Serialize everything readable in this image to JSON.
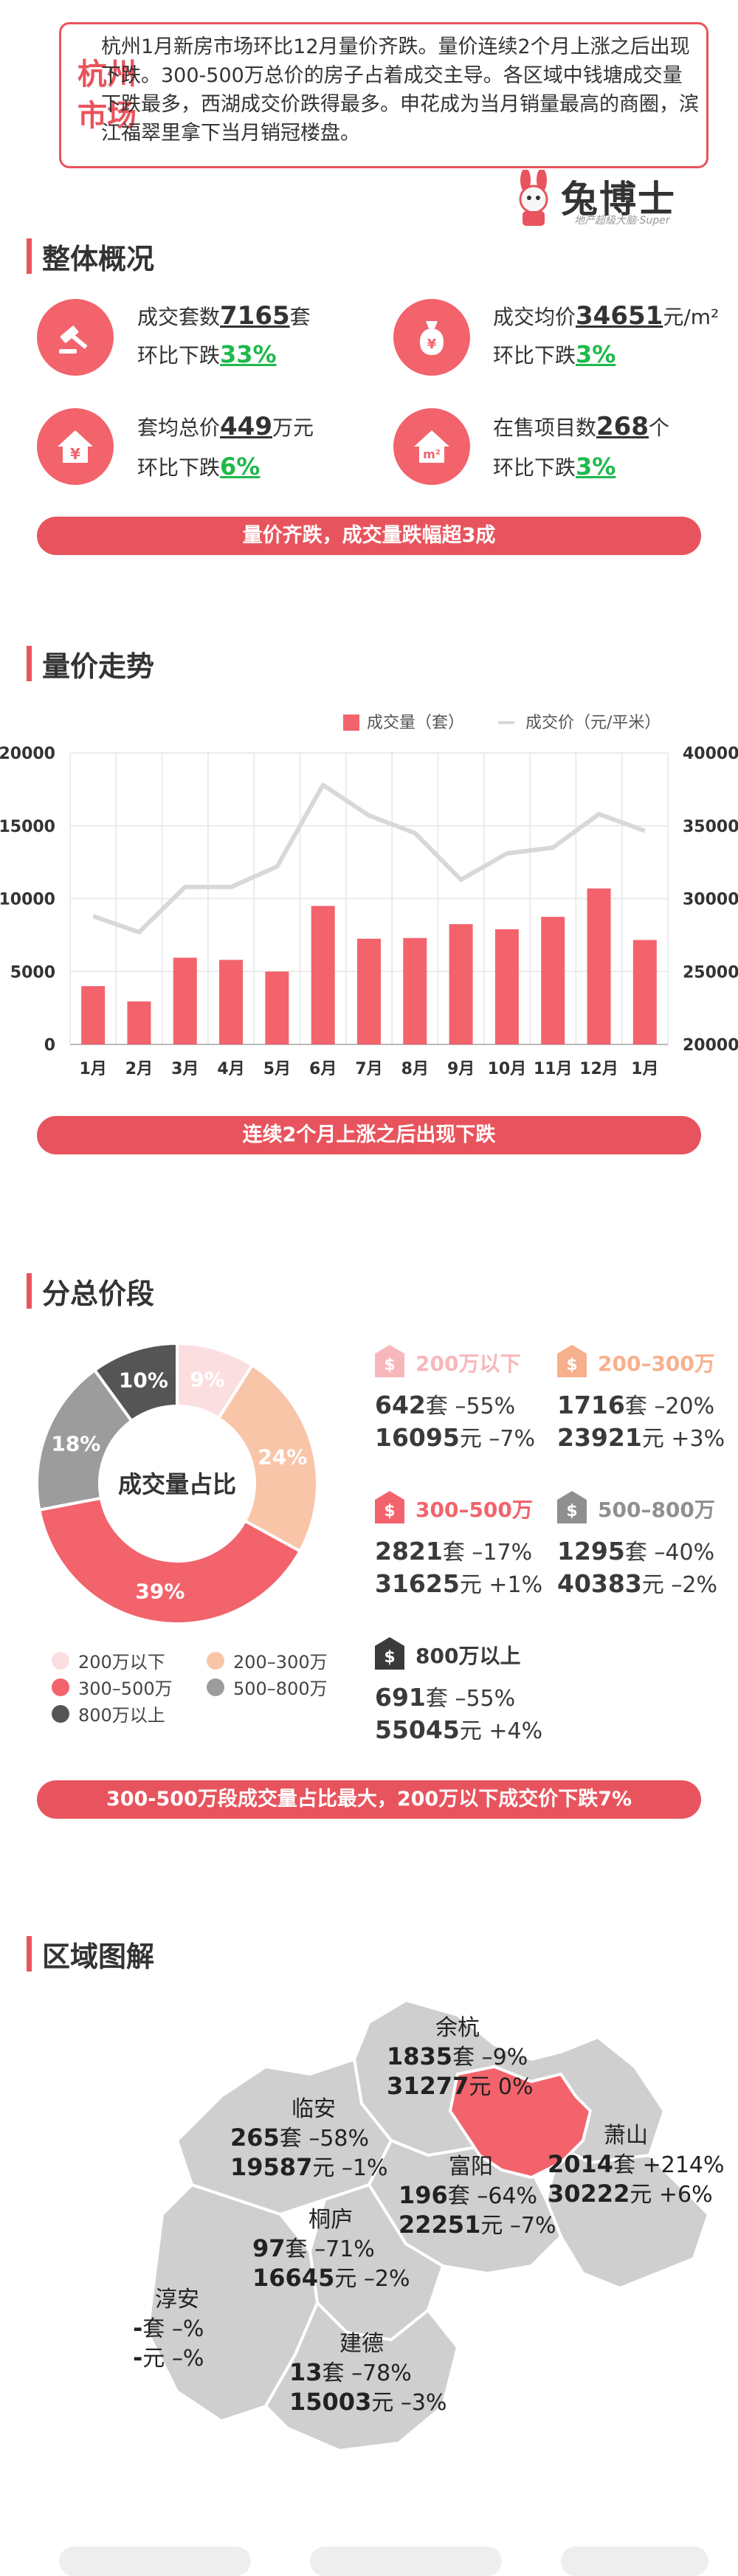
{
  "header": {
    "city": "杭州市场",
    "intro": "杭州1月新房市场环比12月量价齐跌。量价连续2个月上涨之后出现下跌。300-500万总价的房子占着成交主导。各区域中钱塘成交量下跌最多，西湖成交价跌得最多。申花成为当月销量最高的商圈，滨江福翠里拿下当月销冠楼盘。",
    "logo_text": "兔博士",
    "logo_sub": "地产超级大脑·Super"
  },
  "overview": {
    "title": "整体概况",
    "stats": [
      {
        "label": "成交套数",
        "value": "7165",
        "unit": "套",
        "change_label": "环比下跌",
        "change": "33%",
        "icon": "gavel-icon"
      },
      {
        "label": "成交均价",
        "value": "34651",
        "unit": "元/m²",
        "change_label": "环比下跌",
        "change": "3%",
        "icon": "money-bag-icon"
      },
      {
        "label": "套均总价",
        "value": "449",
        "unit": "万元",
        "change_label": "环比下跌",
        "change": "6%",
        "icon": "house-yen-icon"
      },
      {
        "label": "在售项目数",
        "value": "268",
        "unit": "个",
        "change_label": "环比下跌",
        "change": "3%",
        "icon": "house-m2-icon"
      }
    ],
    "banner": "量价齐跌，成交量跌幅超3成"
  },
  "trend": {
    "title": "量价走势",
    "banner": "连续2个月上涨之后出现下跌"
  },
  "chart_data": {
    "type": "bar",
    "categories": [
      "1月",
      "2月",
      "3月",
      "4月",
      "5月",
      "6月",
      "7月",
      "8月",
      "9月",
      "10月",
      "11月",
      "12月",
      "1月"
    ],
    "series": [
      {
        "name": "成交量（套）",
        "type": "bar",
        "axis": "left",
        "values": [
          4000,
          2950,
          5950,
          5800,
          5000,
          9500,
          7250,
          7300,
          8250,
          7900,
          8750,
          10700,
          7165
        ]
      },
      {
        "name": "成交价（元/平米）",
        "type": "line",
        "axis": "right",
        "values": [
          28800,
          27700,
          30800,
          30800,
          32200,
          37800,
          35700,
          34500,
          31300,
          33100,
          33500,
          35800,
          34651
        ]
      }
    ],
    "ylim": [
      0,
      20000
    ],
    "yticks": [
      "0",
      "5000",
      "10000",
      "15000",
      "20000"
    ],
    "y2lim": [
      20000,
      40000
    ],
    "y2ticks": [
      "20000",
      "25000",
      "30000",
      "35000",
      "40000"
    ],
    "legend_position": "top-right",
    "grid": true,
    "colors": {
      "bar": "#f2636c",
      "line": "#d8d8d8"
    }
  },
  "segments": {
    "title": "分总价段",
    "donut_center": "成交量占比",
    "slices": [
      {
        "name": "200万以下",
        "pct": 9,
        "label": "9%",
        "color": "#fbdfe0"
      },
      {
        "name": "200–300万",
        "pct": 24,
        "label": "24%",
        "color": "#f9c5a8"
      },
      {
        "name": "300–500万",
        "pct": 39,
        "label": "39%",
        "color": "#f2636c"
      },
      {
        "name": "500–800万",
        "pct": 18,
        "label": "18%",
        "color": "#9c9c9c"
      },
      {
        "name": "800万以上",
        "pct": 10,
        "label": "10%",
        "color": "#555555"
      }
    ],
    "details": [
      {
        "name": "200万以下",
        "count": "642",
        "count_unit": "套",
        "count_change": "–55%",
        "price": "16095",
        "price_unit": "元",
        "price_change": "–7%",
        "color": "#f8b7bb"
      },
      {
        "name": "200–300万",
        "count": "1716",
        "count_unit": "套",
        "count_change": "–20%",
        "price": "23921",
        "price_unit": "元",
        "price_change": "+3%",
        "color": "#f7b08c"
      },
      {
        "name": "300–500万",
        "count": "2821",
        "count_unit": "套",
        "count_change": "–17%",
        "price": "31625",
        "price_unit": "元",
        "price_change": "+1%",
        "color": "#f2636c"
      },
      {
        "name": "500–800万",
        "count": "1295",
        "count_unit": "套",
        "count_change": "–40%",
        "price": "40383",
        "price_unit": "元",
        "price_change": "–2%",
        "color": "#8f8f8f"
      },
      {
        "name": "800万以上",
        "count": "691",
        "count_unit": "套",
        "count_change": "–55%",
        "price": "55045",
        "price_unit": "元",
        "price_change": "+4%",
        "color": "#3a3a3a"
      }
    ],
    "banner": "300-500万段成交量占比最大，200万以下成交价下跌7%"
  },
  "regions": {
    "title": "区域图解",
    "items": [
      {
        "name": "余杭",
        "count": "1835",
        "count_change": "–9%",
        "price": "31277",
        "price_change": "0%"
      },
      {
        "name": "临安",
        "count": "265",
        "count_change": "–58%",
        "price": "19587",
        "price_change": "–1%"
      },
      {
        "name": "富阳",
        "count": "196",
        "count_change": "–64%",
        "price": "22251",
        "price_change": "–7%"
      },
      {
        "name": "萧山",
        "count": "2014",
        "count_change": "+214%",
        "price": "30222",
        "price_change": "+6%"
      },
      {
        "name": "桐庐",
        "count": "97",
        "count_change": "–71%",
        "price": "16645",
        "price_change": "–2%"
      },
      {
        "name": "淳安",
        "count": "-",
        "count_change": "–%",
        "price": "-",
        "price_change": "–%"
      },
      {
        "name": "建德",
        "count": "13",
        "count_change": "–78%",
        "price": "15003",
        "price_change": "–3%"
      }
    ],
    "count_unit": "套",
    "price_unit": "元"
  }
}
